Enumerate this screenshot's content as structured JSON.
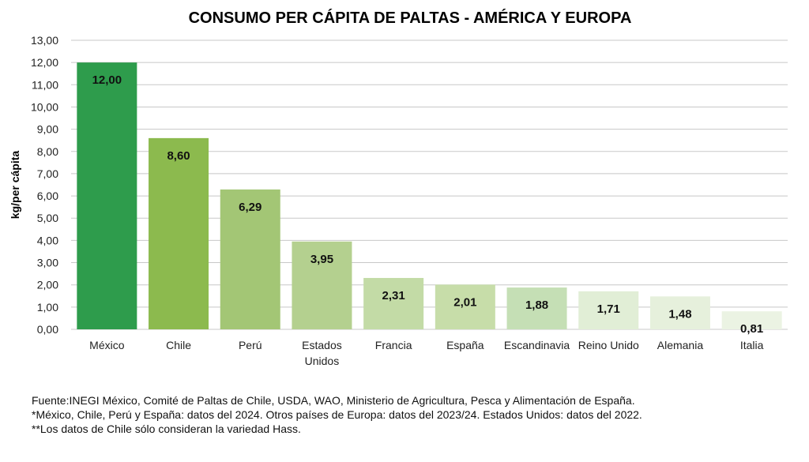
{
  "chart_data": {
    "type": "bar",
    "title": "CONSUMO PER CÁPITA DE PALTAS - AMÉRICA Y EUROPA",
    "xlabel": "",
    "ylabel": "kg/per cápita",
    "ylim": [
      0,
      13
    ],
    "y_ticks": [
      "0,00",
      "1,00",
      "2,00",
      "3,00",
      "4,00",
      "5,00",
      "6,00",
      "7,00",
      "8,00",
      "9,00",
      "10,00",
      "11,00",
      "12,00",
      "13,00"
    ],
    "grid": true,
    "categories": [
      [
        "México"
      ],
      [
        "Chile"
      ],
      [
        "Perú"
      ],
      [
        "Estados",
        "Unidos"
      ],
      [
        "Francia"
      ],
      [
        "España"
      ],
      [
        "Escandinavia"
      ],
      [
        "Reino Unido"
      ],
      [
        "Alemania"
      ],
      [
        "Italia"
      ]
    ],
    "values": [
      12.0,
      8.6,
      6.29,
      3.95,
      2.31,
      2.01,
      1.88,
      1.71,
      1.48,
      0.81
    ],
    "data_labels": [
      "12,00",
      "8,60",
      "6,29",
      "3,95",
      "2,31",
      "2,01",
      "1,88",
      "1,71",
      "1,48",
      "0,81"
    ],
    "bar_colors": [
      "#2e9c4c",
      "#8cba4e",
      "#a3c675",
      "#b4d08f",
      "#c3dba6",
      "#c7dda9",
      "#c5dfb5",
      "#e1eed6",
      "#e6f0dc",
      "#ebf3e3"
    ]
  },
  "footnotes": [
    "Fuente:INEGI México, Comité de Paltas de Chile, USDA, WAO, Ministerio de Agricultura, Pesca y Alimentación de España.",
    "*México, Chile, Perú y España: datos del 2024. Otros países de Europa: datos del 2023/24. Estados Unidos: datos del 2022.",
    "**Los datos de Chile sólo consideran la variedad Hass."
  ]
}
